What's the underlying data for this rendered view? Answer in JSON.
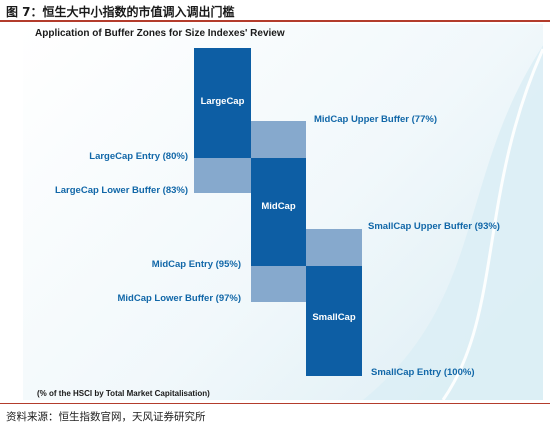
{
  "figure_title": "图 7：恒生大中小指数的市值调入调出门槛",
  "panel_title": "Application of Buffer Zones for Size Indexes' Review",
  "blocks": {
    "largecap": "LargeCap",
    "midcap": "MidCap",
    "smallcap": "SmallCap"
  },
  "labels": {
    "largecap_entry": "LargeCap Entry (80%)",
    "largecap_lower_buffer": "LargeCap Lower Buffer (83%)",
    "midcap_upper_buffer": "MidCap Upper Buffer (77%)",
    "midcap_entry": "MidCap Entry (95%)",
    "midcap_lower_buffer": "MidCap Lower Buffer (97%)",
    "smallcap_upper_buffer": "SmallCap Upper Buffer (93%)",
    "smallcap_entry": "SmallCap Entry (100%)"
  },
  "footnote": "(% of the HSCI by Total Market Capitalisation)",
  "source": "资料来源：恒生指数官网，天风证券研究所",
  "colors": {
    "band_dark": "#0d5ea4",
    "band_light": "#86a9cd",
    "label_text": "#1167a8",
    "rule": "#b33c2c"
  }
}
